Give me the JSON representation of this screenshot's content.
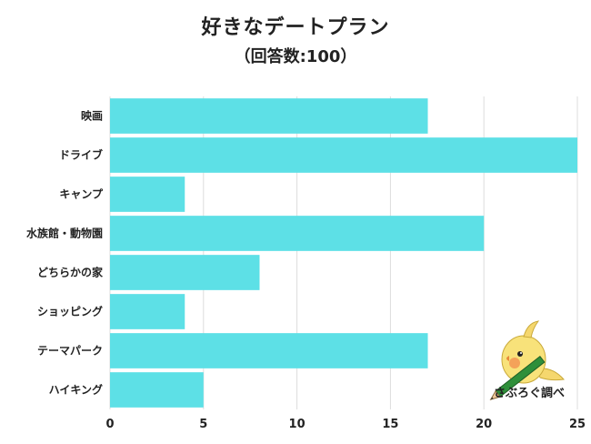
{
  "title": "好きなデートプラン",
  "subtitle": "（回答数:100）",
  "brand": "さぶろぐ調べ",
  "colors": {
    "bar": "#5de0e6",
    "grid": "#dddddd"
  },
  "chart_data": {
    "type": "bar",
    "orientation": "horizontal",
    "categories": [
      "映画",
      "ドライブ",
      "キャンプ",
      "水族館・動物園",
      "どちらかの家",
      "ショッピング",
      "テーマパーク",
      "ハイキング"
    ],
    "values": [
      17,
      25,
      4,
      20,
      8,
      4,
      17,
      5
    ],
    "xlim": [
      0,
      25
    ],
    "xticks": [
      0,
      5,
      10,
      15,
      20,
      25
    ],
    "grid": true
  }
}
